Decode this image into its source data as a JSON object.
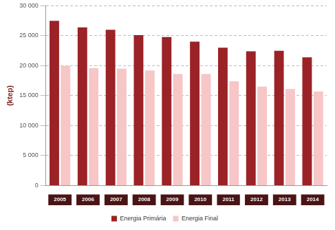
{
  "chart_data": {
    "type": "bar",
    "y_label": "(ktep)",
    "categories": [
      "2005",
      "2006",
      "2007",
      "2008",
      "2009",
      "2010",
      "2011",
      "2012",
      "2013",
      "2014"
    ],
    "series": [
      {
        "name": "Energia Primária",
        "color": "#9b2226",
        "values": [
          27500,
          26400,
          26000,
          25100,
          24800,
          24000,
          23000,
          22400,
          22500,
          21400
        ]
      },
      {
        "name": "Energia Final",
        "color": "#f7c6c7",
        "values": [
          20000,
          19600,
          19500,
          19200,
          18600,
          18600,
          17400,
          16500,
          16100,
          15700
        ]
      }
    ],
    "ylim": [
      0,
      30000
    ],
    "yticks": [
      0,
      {
        "value": 5000,
        "label": "5 000"
      },
      {
        "value": 10000,
        "label": "10 000"
      },
      {
        "value": 15000,
        "label": "15 000"
      },
      {
        "value": 20000,
        "label": "20 000"
      },
      {
        "value": 25000,
        "label": "25 000"
      },
      {
        "value": 30000,
        "label": "30 000"
      }
    ],
    "grid": true,
    "legend": "bottom"
  }
}
